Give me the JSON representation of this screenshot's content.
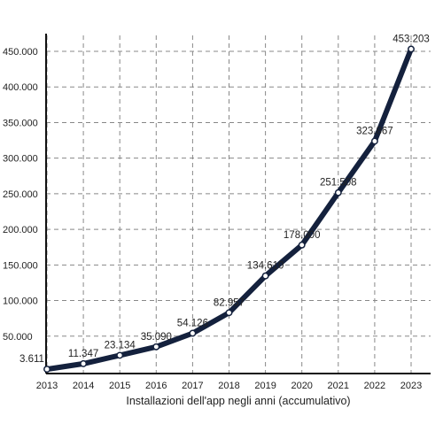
{
  "chart_data": {
    "type": "line",
    "title": "",
    "xlabel": "Installazioni dell'app negli anni (accumulativo)",
    "ylabel": "",
    "x": [
      "2013",
      "2014",
      "2015",
      "2016",
      "2017",
      "2018",
      "2019",
      "2020",
      "2021",
      "2022",
      "2023"
    ],
    "series": [
      {
        "values": [
          3611,
          11347,
          23134,
          35090,
          54126,
          82957,
          134610,
          178000,
          251508,
          323867,
          453203
        ],
        "labels": [
          "3.611",
          "11.347",
          "23.134",
          "35.090",
          "54.126",
          "82.957",
          "134.610",
          "178.000",
          "251.508",
          "323.867",
          "453.203"
        ]
      }
    ],
    "ylim": [
      0,
      450000
    ],
    "yticks": [
      50000,
      100000,
      150000,
      200000,
      250000,
      300000,
      350000,
      400000,
      450000
    ],
    "ytick_labels": [
      "50.000",
      "100.000",
      "150.000",
      "200.000",
      "250.000",
      "300.000",
      "350.000",
      "400.000",
      "450.000"
    ],
    "grid": true,
    "colors": {
      "line": "#14213d",
      "marker_fill": "#ffffff",
      "grid": "#888888",
      "axis": "#111111"
    }
  }
}
